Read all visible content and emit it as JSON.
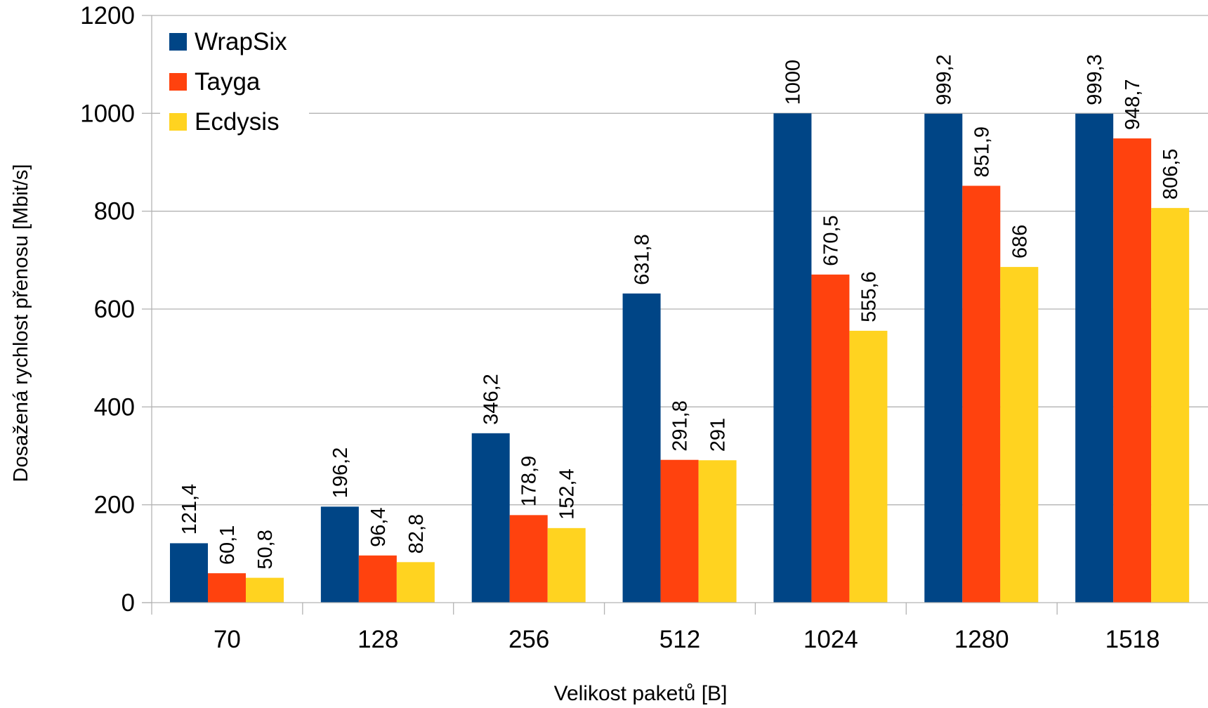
{
  "chart_data": {
    "type": "bar",
    "xlabel": "Velikost paketů [B]",
    "ylabel": "Dosažená rychlost přenosu [Mbit/s]",
    "ylim": [
      0,
      1200
    ],
    "yticks": [
      "0",
      "200",
      "400",
      "600",
      "800",
      "1000",
      "1200"
    ],
    "grid": true,
    "legend_position": "top-left",
    "categories": [
      "70",
      "128",
      "256",
      "512",
      "1024",
      "1280",
      "1518"
    ],
    "series": [
      {
        "name": "WrapSix",
        "color": "#004586",
        "values": [
          121.4,
          196.2,
          346.2,
          631.8,
          1000,
          999.2,
          999.3
        ],
        "labels": [
          "121,4",
          "196,2",
          "346,2",
          "631,8",
          "1000",
          "999,2",
          "999,3"
        ]
      },
      {
        "name": "Tayga",
        "color": "#ff420e",
        "values": [
          60.1,
          96.4,
          178.9,
          291.8,
          670.5,
          851.9,
          948.7
        ],
        "labels": [
          "60,1",
          "96,4",
          "178,9",
          "291,8",
          "670,5",
          "851,9",
          "948,7"
        ]
      },
      {
        "name": "Ecdysis",
        "color": "#ffd320",
        "values": [
          50.8,
          82.8,
          152.4,
          291,
          555.6,
          686,
          806.5
        ],
        "labels": [
          "50,8",
          "82,8",
          "152,4",
          "291",
          "555,6",
          "686",
          "806,5"
        ]
      }
    ]
  }
}
